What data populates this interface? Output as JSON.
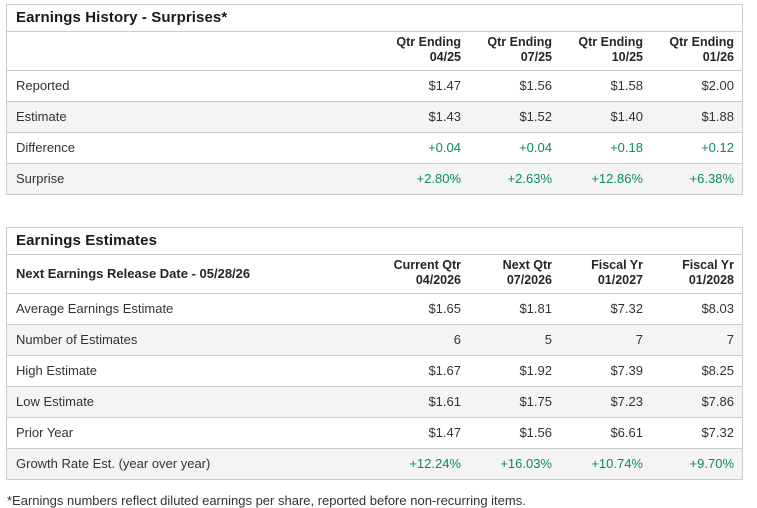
{
  "colors": {
    "positive_value_green": "#0b8a68",
    "border_gray": "#cccccc",
    "stripe_gray": "#f4f4f4",
    "text_dark": "#333333",
    "title_dark": "#1a1a1a"
  },
  "tables": [
    {
      "title": "Earnings History - Surprises*",
      "header": {
        "label": "",
        "columns": [
          "Qtr Ending\n04/25",
          "Qtr Ending\n07/25",
          "Qtr Ending\n10/25",
          "Qtr Ending\n01/26"
        ]
      },
      "rows": [
        {
          "label": "Reported",
          "values": [
            "$1.47",
            "$1.56",
            "$1.58",
            "$2.00"
          ],
          "green": false,
          "striped": false
        },
        {
          "label": "Estimate",
          "values": [
            "$1.43",
            "$1.52",
            "$1.40",
            "$1.88"
          ],
          "green": false,
          "striped": true
        },
        {
          "label": "Difference",
          "values": [
            "+0.04",
            "+0.04",
            "+0.18",
            "+0.12"
          ],
          "green": true,
          "striped": false
        },
        {
          "label": "Surprise",
          "values": [
            "+2.80%",
            "+2.63%",
            "+12.86%",
            "+6.38%"
          ],
          "green": true,
          "striped": true
        }
      ]
    },
    {
      "title": "Earnings Estimates",
      "header": {
        "label": "Next Earnings Release Date - 05/28/26",
        "columns": [
          "Current Qtr\n04/2026",
          "Next Qtr\n07/2026",
          "Fiscal Yr\n01/2027",
          "Fiscal Yr\n01/2028"
        ]
      },
      "rows": [
        {
          "label": "Average Earnings Estimate",
          "values": [
            "$1.65",
            "$1.81",
            "$7.32",
            "$8.03"
          ],
          "green": false,
          "striped": false
        },
        {
          "label": "Number of Estimates",
          "values": [
            "6",
            "5",
            "7",
            "7"
          ],
          "green": false,
          "striped": true
        },
        {
          "label": "High Estimate",
          "values": [
            "$1.67",
            "$1.92",
            "$7.39",
            "$8.25"
          ],
          "green": false,
          "striped": false
        },
        {
          "label": "Low Estimate",
          "values": [
            "$1.61",
            "$1.75",
            "$7.23",
            "$7.86"
          ],
          "green": false,
          "striped": true
        },
        {
          "label": "Prior Year",
          "values": [
            "$1.47",
            "$1.56",
            "$6.61",
            "$7.32"
          ],
          "green": false,
          "striped": false
        },
        {
          "label": "Growth Rate Est. (year over year)",
          "values": [
            "+12.24%",
            "+16.03%",
            "+10.74%",
            "+9.70%"
          ],
          "green": true,
          "striped": true
        }
      ]
    }
  ],
  "footnote": "*Earnings numbers reflect diluted earnings per share, reported before non-recurring items."
}
